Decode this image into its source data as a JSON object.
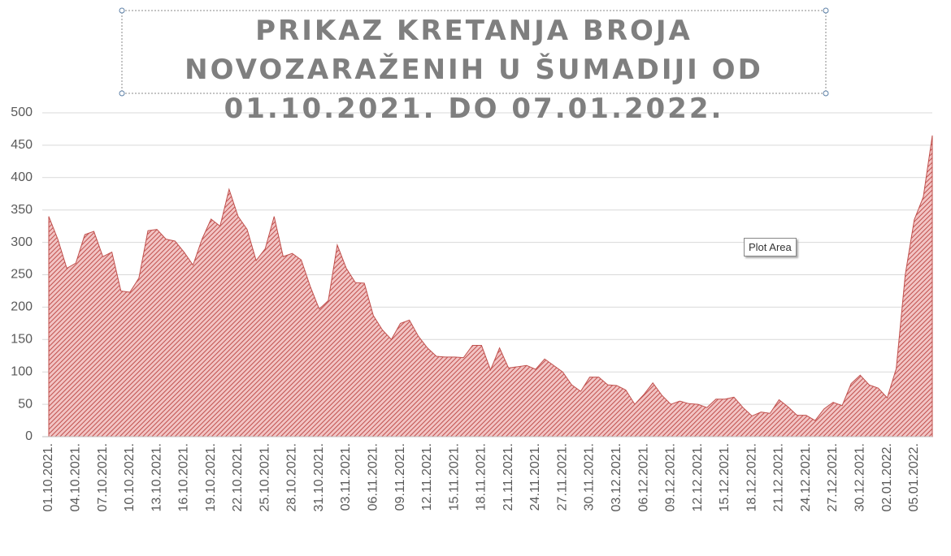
{
  "chart_data": {
    "type": "area",
    "title": "PRIKAZ KRETANJA BROJA NOVOZARAŽENIH U ŠUMADIJI OD 01.10.2021. DO 07.01.2022.",
    "tooltip": "Plot Area",
    "color": "#c0504d",
    "grid": true,
    "ylim": [
      0,
      500
    ],
    "yticks": [
      0,
      50,
      100,
      150,
      200,
      250,
      300,
      350,
      400,
      450,
      500
    ],
    "categories": [
      "01.10.2021.",
      null,
      null,
      "04.10.2021.",
      null,
      null,
      "07.10.2021.",
      null,
      null,
      "10.10.2021.",
      null,
      null,
      "13.10.2021.",
      null,
      null,
      "16.10.2021.",
      null,
      null,
      "19.10.2021.",
      null,
      null,
      "22.10.2021.",
      null,
      null,
      "25.10.2021.",
      null,
      null,
      "28.10.2021.",
      null,
      null,
      "31.10.2021.",
      null,
      null,
      "03.11.2021.",
      null,
      null,
      "06.11.2021.",
      null,
      null,
      "09.11.2021.",
      null,
      null,
      "12.11.2021.",
      null,
      null,
      "15.11.2021.",
      null,
      null,
      "18.11.2021.",
      null,
      null,
      "21.11.2021.",
      null,
      null,
      "24.11.2021.",
      null,
      null,
      "27.11.2021.",
      null,
      null,
      "30.11.2021.",
      null,
      null,
      "03.12.2021.",
      null,
      null,
      "06.12.2021.",
      null,
      null,
      "09.12.2021.",
      null,
      null,
      "12.12.2021.",
      null,
      null,
      "15.12.2021.",
      null,
      null,
      "18.12.2021.",
      null,
      null,
      "21.12.2021.",
      null,
      null,
      "24.12.2021.",
      null,
      null,
      "27.12.2021.",
      null,
      null,
      "30.12.2021.",
      null,
      null,
      "02.01.2022.",
      null,
      null,
      "05.01.2022.",
      null,
      null
    ],
    "values": [
      340,
      305,
      260,
      268,
      312,
      317,
      278,
      285,
      225,
      223,
      245,
      318,
      320,
      305,
      302,
      285,
      265,
      305,
      336,
      325,
      382,
      340,
      320,
      272,
      290,
      340,
      278,
      283,
      273,
      232,
      197,
      210,
      296,
      260,
      238,
      237,
      187,
      165,
      150,
      175,
      180,
      155,
      137,
      124,
      123,
      123,
      122,
      141,
      141,
      103,
      137,
      106,
      108,
      110,
      104,
      120,
      110,
      100,
      80,
      70,
      92,
      92,
      80,
      79,
      72,
      50,
      65,
      83,
      64,
      50,
      55,
      51,
      50,
      45,
      58,
      58,
      61,
      45,
      32,
      38,
      36,
      57,
      46,
      33,
      33,
      25,
      43,
      53,
      48,
      82,
      95,
      80,
      75,
      60,
      105,
      250,
      335,
      370,
      465
    ]
  }
}
